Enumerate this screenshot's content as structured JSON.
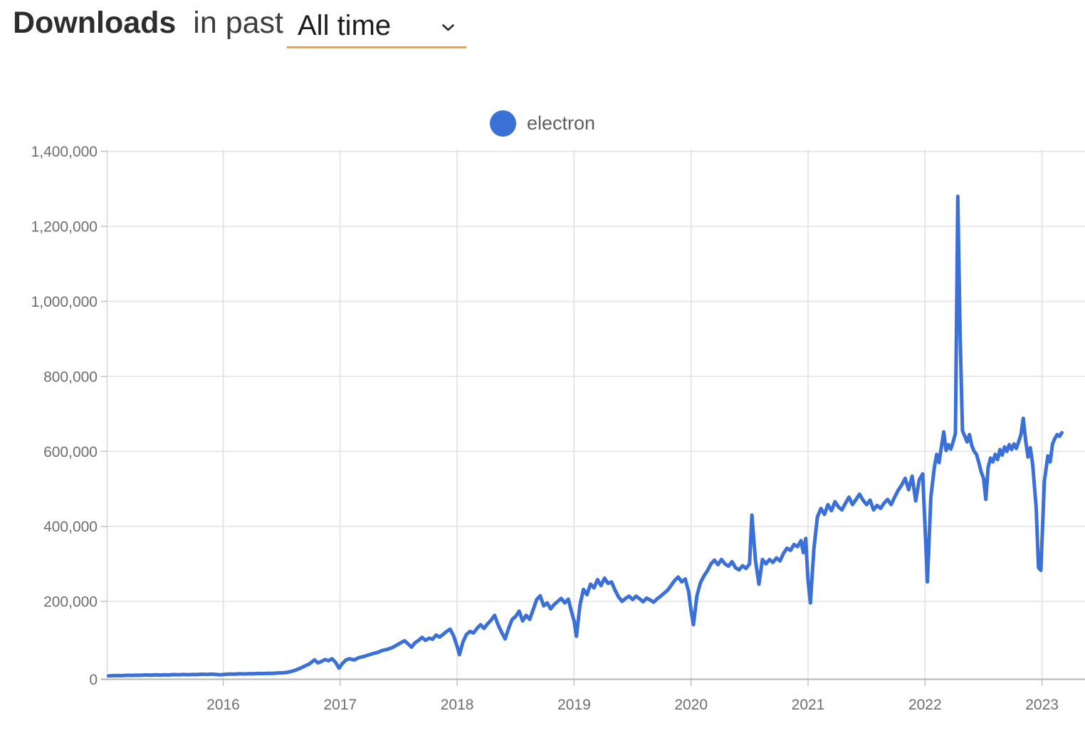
{
  "header": {
    "title_bold": "Downloads",
    "title_rest": "in past",
    "range_selector": {
      "value": "All time",
      "icon": "chevron-down-icon"
    }
  },
  "legend": {
    "series_label": "electron",
    "marker_color": "#3B70D7"
  },
  "colors": {
    "line": "#3B70D7",
    "accent_underline": "#F2A33C",
    "gridline": "#e3e3e3",
    "x_axis": "#b5b5b5",
    "y_axis": "#d8d8d8",
    "tick": "#c2c2c2",
    "tick_label": "#6e6e6e"
  },
  "chart_data": {
    "type": "line",
    "title": "Downloads in past All time",
    "xlabel": "",
    "ylabel": "",
    "grid": true,
    "legend_position": "top-center",
    "x_ticks": [
      2016,
      2017,
      2018,
      2019,
      2020,
      2021,
      2022,
      2023
    ],
    "y_ticks": [
      0,
      200000,
      400000,
      600000,
      800000,
      1000000,
      1200000,
      1400000
    ],
    "xlim": [
      2015.0,
      2023.37
    ],
    "ylim": [
      0,
      1400000
    ],
    "series": [
      {
        "name": "electron",
        "color": "#3B70D7",
        "points": [
          [
            2015.02,
            1500
          ],
          [
            2015.06,
            2100
          ],
          [
            2015.1,
            2400
          ],
          [
            2015.14,
            2000
          ],
          [
            2015.18,
            3000
          ],
          [
            2015.22,
            2600
          ],
          [
            2015.26,
            3400
          ],
          [
            2015.3,
            3000
          ],
          [
            2015.34,
            3900
          ],
          [
            2015.38,
            3400
          ],
          [
            2015.42,
            4100
          ],
          [
            2015.46,
            3600
          ],
          [
            2015.5,
            4400
          ],
          [
            2015.54,
            4000
          ],
          [
            2015.58,
            4900
          ],
          [
            2015.62,
            4400
          ],
          [
            2015.66,
            5100
          ],
          [
            2015.7,
            4600
          ],
          [
            2015.74,
            5400
          ],
          [
            2015.78,
            5000
          ],
          [
            2015.82,
            5800
          ],
          [
            2015.86,
            5300
          ],
          [
            2015.9,
            6000
          ],
          [
            2015.94,
            5200
          ],
          [
            2015.98,
            4400
          ],
          [
            2016.02,
            5600
          ],
          [
            2016.06,
            6500
          ],
          [
            2016.1,
            6100
          ],
          [
            2016.14,
            7000
          ],
          [
            2016.18,
            6600
          ],
          [
            2016.22,
            7400
          ],
          [
            2016.26,
            7000
          ],
          [
            2016.3,
            7900
          ],
          [
            2016.34,
            7500
          ],
          [
            2016.38,
            8400
          ],
          [
            2016.42,
            8100
          ],
          [
            2016.46,
            8900
          ],
          [
            2016.5,
            9400
          ],
          [
            2016.54,
            10500
          ],
          [
            2016.58,
            13000
          ],
          [
            2016.62,
            17000
          ],
          [
            2016.66,
            22000
          ],
          [
            2016.7,
            28000
          ],
          [
            2016.74,
            34000
          ],
          [
            2016.78,
            44000
          ],
          [
            2016.81,
            36000
          ],
          [
            2016.84,
            40000
          ],
          [
            2016.87,
            45000
          ],
          [
            2016.9,
            42000
          ],
          [
            2016.93,
            47000
          ],
          [
            2016.96,
            38000
          ],
          [
            2016.99,
            22000
          ],
          [
            2017.02,
            35000
          ],
          [
            2017.05,
            44000
          ],
          [
            2017.08,
            47000
          ],
          [
            2017.12,
            44000
          ],
          [
            2017.16,
            50000
          ],
          [
            2017.2,
            53000
          ],
          [
            2017.24,
            57000
          ],
          [
            2017.28,
            61000
          ],
          [
            2017.32,
            64000
          ],
          [
            2017.36,
            69000
          ],
          [
            2017.4,
            72000
          ],
          [
            2017.44,
            76000
          ],
          [
            2017.48,
            83000
          ],
          [
            2017.52,
            90000
          ],
          [
            2017.55,
            95000
          ],
          [
            2017.58,
            87000
          ],
          [
            2017.61,
            78000
          ],
          [
            2017.64,
            90000
          ],
          [
            2017.67,
            96000
          ],
          [
            2017.7,
            104000
          ],
          [
            2017.73,
            96000
          ],
          [
            2017.76,
            102000
          ],
          [
            2017.79,
            99000
          ],
          [
            2017.82,
            110000
          ],
          [
            2017.85,
            105000
          ],
          [
            2017.88,
            112000
          ],
          [
            2017.91,
            120000
          ],
          [
            2017.94,
            126000
          ],
          [
            2017.97,
            108000
          ],
          [
            2018.0,
            80000
          ],
          [
            2018.02,
            58000
          ],
          [
            2018.05,
            92000
          ],
          [
            2018.08,
            112000
          ],
          [
            2018.11,
            120000
          ],
          [
            2018.14,
            116000
          ],
          [
            2018.17,
            128000
          ],
          [
            2018.2,
            138000
          ],
          [
            2018.23,
            128000
          ],
          [
            2018.26,
            140000
          ],
          [
            2018.29,
            150000
          ],
          [
            2018.32,
            163000
          ],
          [
            2018.35,
            138000
          ],
          [
            2018.38,
            118000
          ],
          [
            2018.41,
            100000
          ],
          [
            2018.44,
            128000
          ],
          [
            2018.47,
            152000
          ],
          [
            2018.5,
            160000
          ],
          [
            2018.53,
            174000
          ],
          [
            2018.56,
            148000
          ],
          [
            2018.59,
            163000
          ],
          [
            2018.62,
            152000
          ],
          [
            2018.65,
            178000
          ],
          [
            2018.68,
            205000
          ],
          [
            2018.71,
            215000
          ],
          [
            2018.74,
            188000
          ],
          [
            2018.77,
            196000
          ],
          [
            2018.8,
            180000
          ],
          [
            2018.83,
            192000
          ],
          [
            2018.86,
            200000
          ],
          [
            2018.89,
            208000
          ],
          [
            2018.92,
            196000
          ],
          [
            2018.95,
            206000
          ],
          [
            2018.98,
            170000
          ],
          [
            2019.0,
            148000
          ],
          [
            2019.02,
            107000
          ],
          [
            2019.05,
            190000
          ],
          [
            2019.08,
            232000
          ],
          [
            2019.11,
            218000
          ],
          [
            2019.14,
            246000
          ],
          [
            2019.17,
            236000
          ],
          [
            2019.2,
            258000
          ],
          [
            2019.23,
            242000
          ],
          [
            2019.26,
            262000
          ],
          [
            2019.29,
            248000
          ],
          [
            2019.32,
            252000
          ],
          [
            2019.35,
            230000
          ],
          [
            2019.38,
            212000
          ],
          [
            2019.41,
            200000
          ],
          [
            2019.44,
            208000
          ],
          [
            2019.47,
            214000
          ],
          [
            2019.5,
            205000
          ],
          [
            2019.53,
            214000
          ],
          [
            2019.56,
            207000
          ],
          [
            2019.59,
            199000
          ],
          [
            2019.62,
            209000
          ],
          [
            2019.65,
            204000
          ],
          [
            2019.68,
            198000
          ],
          [
            2019.71,
            207000
          ],
          [
            2019.74,
            214000
          ],
          [
            2019.77,
            222000
          ],
          [
            2019.8,
            230000
          ],
          [
            2019.83,
            243000
          ],
          [
            2019.86,
            256000
          ],
          [
            2019.89,
            265000
          ],
          [
            2019.92,
            252000
          ],
          [
            2019.95,
            260000
          ],
          [
            2019.98,
            225000
          ],
          [
            2020.0,
            175000
          ],
          [
            2020.02,
            138000
          ],
          [
            2020.05,
            215000
          ],
          [
            2020.08,
            250000
          ],
          [
            2020.11,
            268000
          ],
          [
            2020.14,
            282000
          ],
          [
            2020.17,
            300000
          ],
          [
            2020.2,
            310000
          ],
          [
            2020.23,
            298000
          ],
          [
            2020.26,
            312000
          ],
          [
            2020.29,
            300000
          ],
          [
            2020.32,
            294000
          ],
          [
            2020.35,
            306000
          ],
          [
            2020.38,
            290000
          ],
          [
            2020.41,
            284000
          ],
          [
            2020.44,
            295000
          ],
          [
            2020.47,
            288000
          ],
          [
            2020.5,
            300000
          ],
          [
            2020.52,
            430000
          ],
          [
            2020.55,
            310000
          ],
          [
            2020.58,
            246000
          ],
          [
            2020.61,
            312000
          ],
          [
            2020.64,
            300000
          ],
          [
            2020.67,
            312000
          ],
          [
            2020.7,
            304000
          ],
          [
            2020.73,
            316000
          ],
          [
            2020.76,
            308000
          ],
          [
            2020.79,
            328000
          ],
          [
            2020.82,
            342000
          ],
          [
            2020.85,
            336000
          ],
          [
            2020.88,
            352000
          ],
          [
            2020.91,
            346000
          ],
          [
            2020.94,
            362000
          ],
          [
            2020.96,
            330000
          ],
          [
            2020.98,
            368000
          ],
          [
            2021.0,
            255000
          ],
          [
            2021.02,
            196000
          ],
          [
            2021.05,
            340000
          ],
          [
            2021.08,
            425000
          ],
          [
            2021.11,
            448000
          ],
          [
            2021.14,
            432000
          ],
          [
            2021.17,
            458000
          ],
          [
            2021.2,
            442000
          ],
          [
            2021.23,
            466000
          ],
          [
            2021.26,
            452000
          ],
          [
            2021.29,
            444000
          ],
          [
            2021.32,
            462000
          ],
          [
            2021.35,
            478000
          ],
          [
            2021.38,
            458000
          ],
          [
            2021.41,
            472000
          ],
          [
            2021.44,
            486000
          ],
          [
            2021.47,
            470000
          ],
          [
            2021.5,
            458000
          ],
          [
            2021.53,
            470000
          ],
          [
            2021.56,
            444000
          ],
          [
            2021.59,
            456000
          ],
          [
            2021.62,
            448000
          ],
          [
            2021.65,
            462000
          ],
          [
            2021.68,
            472000
          ],
          [
            2021.71,
            458000
          ],
          [
            2021.74,
            478000
          ],
          [
            2021.77,
            496000
          ],
          [
            2021.8,
            510000
          ],
          [
            2021.83,
            528000
          ],
          [
            2021.86,
            498000
          ],
          [
            2021.89,
            534000
          ],
          [
            2021.92,
            468000
          ],
          [
            2021.95,
            524000
          ],
          [
            2021.98,
            540000
          ],
          [
            2022.0,
            400000
          ],
          [
            2022.02,
            252000
          ],
          [
            2022.05,
            478000
          ],
          [
            2022.08,
            558000
          ],
          [
            2022.1,
            592000
          ],
          [
            2022.12,
            570000
          ],
          [
            2022.14,
            612000
          ],
          [
            2022.16,
            652000
          ],
          [
            2022.18,
            602000
          ],
          [
            2022.2,
            618000
          ],
          [
            2022.22,
            606000
          ],
          [
            2022.24,
            625000
          ],
          [
            2022.26,
            648000
          ],
          [
            2022.28,
            1280000
          ],
          [
            2022.3,
            910000
          ],
          [
            2022.32,
            655000
          ],
          [
            2022.34,
            640000
          ],
          [
            2022.36,
            625000
          ],
          [
            2022.38,
            645000
          ],
          [
            2022.4,
            615000
          ],
          [
            2022.42,
            600000
          ],
          [
            2022.44,
            592000
          ],
          [
            2022.46,
            570000
          ],
          [
            2022.48,
            545000
          ],
          [
            2022.5,
            528000
          ],
          [
            2022.52,
            472000
          ],
          [
            2022.54,
            558000
          ],
          [
            2022.56,
            582000
          ],
          [
            2022.58,
            572000
          ],
          [
            2022.6,
            592000
          ],
          [
            2022.62,
            578000
          ],
          [
            2022.64,
            605000
          ],
          [
            2022.66,
            590000
          ],
          [
            2022.68,
            612000
          ],
          [
            2022.7,
            600000
          ],
          [
            2022.72,
            618000
          ],
          [
            2022.74,
            605000
          ],
          [
            2022.76,
            620000
          ],
          [
            2022.78,
            608000
          ],
          [
            2022.8,
            625000
          ],
          [
            2022.82,
            645000
          ],
          [
            2022.84,
            688000
          ],
          [
            2022.86,
            630000
          ],
          [
            2022.88,
            585000
          ],
          [
            2022.9,
            610000
          ],
          [
            2022.92,
            565000
          ],
          [
            2022.95,
            450000
          ],
          [
            2022.97,
            290000
          ],
          [
            2022.99,
            283000
          ],
          [
            2023.02,
            520000
          ],
          [
            2023.05,
            588000
          ],
          [
            2023.07,
            572000
          ],
          [
            2023.09,
            620000
          ],
          [
            2023.11,
            635000
          ],
          [
            2023.13,
            645000
          ],
          [
            2023.15,
            640000
          ],
          [
            2023.17,
            650000
          ]
        ]
      }
    ]
  }
}
